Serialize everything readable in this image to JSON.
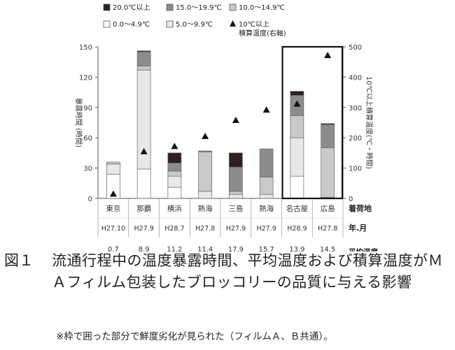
{
  "chart_data": {
    "type": "bar",
    "stacked": true,
    "categories": [
      "東京",
      "那覇",
      "横浜",
      "熱海",
      "三島",
      "熱海",
      "名古屋",
      "広島"
    ],
    "shipping_months": [
      "H27.10",
      "H27.9",
      "H28.7",
      "H27.8",
      "H27.9",
      "H27.9",
      "H28.9",
      "H27.8"
    ],
    "average_temperatures": [
      "0.7",
      "8.9",
      "11.2",
      "11.4",
      "17.9",
      "15.7",
      "13.9",
      "14.5"
    ],
    "series": [
      {
        "name": "0.0～4.9℃",
        "color": "#ffffff",
        "values": [
          24,
          29,
          11,
          0,
          0,
          0,
          22,
          0
        ]
      },
      {
        "name": "5.0～9.9℃",
        "color": "#e8e8e8",
        "values": [
          10,
          98,
          11,
          7,
          4,
          4,
          38,
          1
        ]
      },
      {
        "name": "10.0～14.9℃",
        "color": "#c9c9c9",
        "values": [
          2,
          4,
          5,
          39,
          3,
          17,
          22,
          49
        ]
      },
      {
        "name": "15.0～19.9℃",
        "color": "#8c8c8c",
        "values": [
          0,
          14,
          8,
          1,
          24,
          28,
          20,
          23
        ]
      },
      {
        "name": "20.0℃以上",
        "color": "#2e2020",
        "values": [
          0,
          1,
          10,
          0,
          14,
          0,
          4,
          1
        ]
      }
    ],
    "cumulative_series": {
      "name": "10℃以上\n積算温度(右軸)",
      "values": [
        15,
        155,
        172,
        205,
        258,
        292,
        312,
        472
      ]
    },
    "ylabel": "暴露時間 (時間)",
    "y2label": "10℃以上積算温度(℃・時間)",
    "ylim": [
      0,
      150
    ],
    "yticks": [
      0,
      30,
      60,
      90,
      120,
      150
    ],
    "y2lim": [
      0,
      500
    ],
    "y2ticks": [
      0,
      100,
      200,
      300,
      400,
      500
    ],
    "row_label_ship": "着荷地",
    "row_label_month": "年.月",
    "row_label_temp": "平均温度",
    "legend_position": "top",
    "highlight_categories": [
      6,
      7
    ],
    "grid": false
  },
  "caption": {
    "label": "図１",
    "title": "流通行程中の温度暴露時間、平均温度および積算温度がＭＡフィルム包装したブロッコリーの品質に与える影響",
    "note": "※枠で囲った部分で鮮度劣化が見られた（フィルムＡ、Ｂ共通）。"
  }
}
